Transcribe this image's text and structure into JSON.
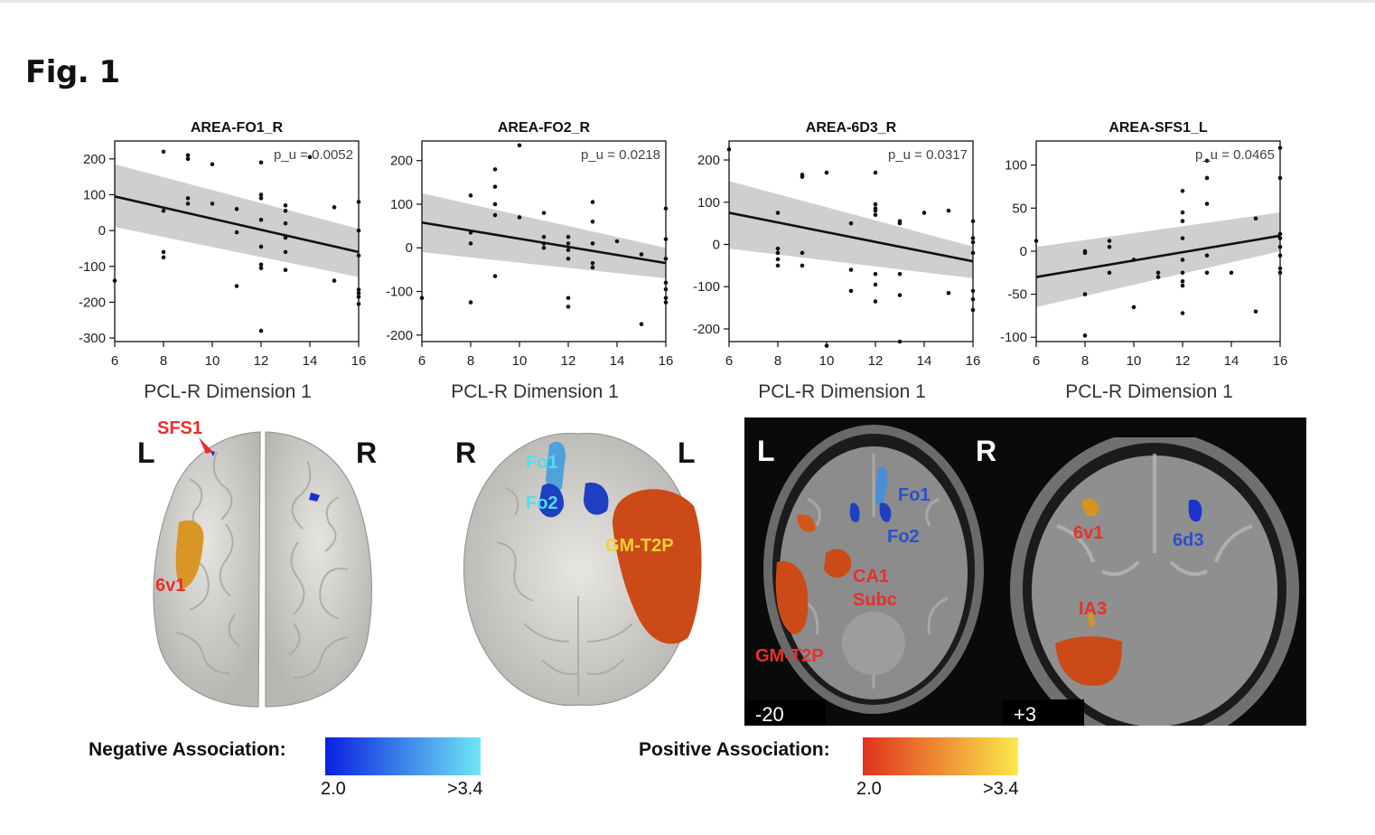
{
  "figure": {
    "title": "Fig. 1"
  },
  "chart_data": [
    {
      "type": "scatter",
      "title": "AREA-FO1_R",
      "annotation": "p_u = 0.0052",
      "xlabel": "PCL-R Dimension 1",
      "ylabel": "",
      "xlim": [
        6,
        16
      ],
      "ylim": [
        -310,
        250
      ],
      "xticks": [
        6,
        8,
        10,
        12,
        14,
        16
      ],
      "yticks": [
        200,
        100,
        0,
        -100,
        -200,
        -300
      ],
      "fit": {
        "x": [
          6,
          16
        ],
        "y": [
          95,
          -60
        ],
        "ci_low": [
          10,
          -130
        ],
        "ci_high": [
          185,
          5
        ]
      },
      "points": [
        [
          6,
          -140
        ],
        [
          8,
          220
        ],
        [
          8,
          55
        ],
        [
          8,
          -60
        ],
        [
          8,
          -75
        ],
        [
          9,
          210
        ],
        [
          9,
          200
        ],
        [
          9,
          90
        ],
        [
          9,
          75
        ],
        [
          10,
          185
        ],
        [
          10,
          75
        ],
        [
          11,
          60
        ],
        [
          11,
          -5
        ],
        [
          11,
          -155
        ],
        [
          12,
          190
        ],
        [
          12,
          100
        ],
        [
          12,
          90
        ],
        [
          12,
          30
        ],
        [
          12,
          -45
        ],
        [
          12,
          -95
        ],
        [
          12,
          -105
        ],
        [
          12,
          -280
        ],
        [
          13,
          70
        ],
        [
          13,
          55
        ],
        [
          13,
          20
        ],
        [
          13,
          -20
        ],
        [
          13,
          -60
        ],
        [
          13,
          -110
        ],
        [
          14,
          205
        ],
        [
          15,
          -140
        ],
        [
          15,
          65
        ],
        [
          16,
          80
        ],
        [
          16,
          0
        ],
        [
          16,
          -70
        ],
        [
          16,
          -165
        ],
        [
          16,
          -175
        ],
        [
          16,
          -185
        ],
        [
          16,
          -205
        ]
      ]
    },
    {
      "type": "scatter",
      "title": "AREA-FO2_R",
      "annotation": "p_u = 0.0218",
      "xlabel": "PCL-R Dimension 1",
      "ylabel": "",
      "xlim": [
        6,
        16
      ],
      "ylim": [
        -215,
        245
      ],
      "xticks": [
        6,
        8,
        10,
        12,
        14,
        16
      ],
      "yticks": [
        200,
        100,
        0,
        -100,
        -200
      ],
      "fit": {
        "x": [
          6,
          16
        ],
        "y": [
          58,
          -35
        ],
        "ci_low": [
          -10,
          -70
        ],
        "ci_high": [
          125,
          0
        ]
      },
      "points": [
        [
          6,
          -115
        ],
        [
          8,
          120
        ],
        [
          8,
          35
        ],
        [
          8,
          10
        ],
        [
          8,
          -125
        ],
        [
          9,
          180
        ],
        [
          9,
          140
        ],
        [
          9,
          100
        ],
        [
          9,
          75
        ],
        [
          9,
          -65
        ],
        [
          10,
          235
        ],
        [
          10,
          70
        ],
        [
          11,
          80
        ],
        [
          11,
          25
        ],
        [
          11,
          10
        ],
        [
          11,
          0
        ],
        [
          12,
          25
        ],
        [
          12,
          10
        ],
        [
          12,
          -5
        ],
        [
          12,
          -25
        ],
        [
          12,
          -115
        ],
        [
          12,
          -135
        ],
        [
          13,
          105
        ],
        [
          13,
          60
        ],
        [
          13,
          10
        ],
        [
          13,
          -35
        ],
        [
          13,
          -45
        ],
        [
          14,
          15
        ],
        [
          15,
          -15
        ],
        [
          15,
          -175
        ],
        [
          16,
          90
        ],
        [
          16,
          20
        ],
        [
          16,
          -25
        ],
        [
          16,
          -80
        ],
        [
          16,
          -95
        ],
        [
          16,
          -115
        ],
        [
          16,
          -125
        ]
      ]
    },
    {
      "type": "scatter",
      "title": "AREA-6D3_R",
      "annotation": "p_u = 0.0317",
      "xlabel": "PCL-R Dimension 1",
      "ylabel": "",
      "xlim": [
        6,
        16
      ],
      "ylim": [
        -230,
        245
      ],
      "xticks": [
        6,
        8,
        10,
        12,
        14,
        16
      ],
      "yticks": [
        200,
        100,
        0,
        -100,
        -200
      ],
      "fit": {
        "x": [
          6,
          16
        ],
        "y": [
          75,
          -40
        ],
        "ci_low": [
          -10,
          -80
        ],
        "ci_high": [
          150,
          -5
        ]
      },
      "points": [
        [
          6,
          225
        ],
        [
          8,
          75
        ],
        [
          8,
          -10
        ],
        [
          8,
          -20
        ],
        [
          8,
          -35
        ],
        [
          8,
          -50
        ],
        [
          9,
          165
        ],
        [
          9,
          160
        ],
        [
          9,
          -20
        ],
        [
          9,
          -50
        ],
        [
          10,
          170
        ],
        [
          10,
          -240
        ],
        [
          11,
          50
        ],
        [
          11,
          -60
        ],
        [
          11,
          -110
        ],
        [
          12,
          170
        ],
        [
          12,
          95
        ],
        [
          12,
          85
        ],
        [
          12,
          80
        ],
        [
          12,
          70
        ],
        [
          12,
          -70
        ],
        [
          12,
          -95
        ],
        [
          12,
          -135
        ],
        [
          13,
          55
        ],
        [
          13,
          50
        ],
        [
          13,
          -70
        ],
        [
          13,
          -120
        ],
        [
          13,
          -230
        ],
        [
          14,
          75
        ],
        [
          15,
          80
        ],
        [
          15,
          -115
        ],
        [
          16,
          55
        ],
        [
          16,
          15
        ],
        [
          16,
          5
        ],
        [
          16,
          -20
        ],
        [
          16,
          -110
        ],
        [
          16,
          -130
        ],
        [
          16,
          -155
        ]
      ]
    },
    {
      "type": "scatter",
      "title": "AREA-SFS1_L",
      "annotation": "p_u = 0.0465",
      "xlabel": "PCL-R Dimension 1",
      "ylabel": "",
      "xlim": [
        6,
        16
      ],
      "ylim": [
        -105,
        128
      ],
      "xticks": [
        6,
        8,
        10,
        12,
        14,
        16
      ],
      "yticks": [
        100,
        50,
        0,
        -50,
        -100
      ],
      "fit": {
        "x": [
          6,
          16
        ],
        "y": [
          -30,
          18
        ],
        "ci_low": [
          -65,
          0
        ],
        "ci_high": [
          5,
          45
        ]
      },
      "points": [
        [
          6,
          12
        ],
        [
          8,
          0
        ],
        [
          8,
          -2
        ],
        [
          8,
          -50
        ],
        [
          8,
          -98
        ],
        [
          9,
          12
        ],
        [
          9,
          5
        ],
        [
          9,
          -25
        ],
        [
          10,
          -10
        ],
        [
          10,
          -65
        ],
        [
          11,
          -25
        ],
        [
          11,
          -30
        ],
        [
          12,
          70
        ],
        [
          12,
          45
        ],
        [
          12,
          35
        ],
        [
          12,
          15
        ],
        [
          12,
          -10
        ],
        [
          12,
          -25
        ],
        [
          12,
          -35
        ],
        [
          12,
          -40
        ],
        [
          12,
          -72
        ],
        [
          13,
          105
        ],
        [
          13,
          85
        ],
        [
          13,
          55
        ],
        [
          13,
          -5
        ],
        [
          13,
          -25
        ],
        [
          14,
          -25
        ],
        [
          15,
          38
        ],
        [
          15,
          -70
        ],
        [
          16,
          120
        ],
        [
          16,
          85
        ],
        [
          16,
          20
        ],
        [
          16,
          5
        ],
        [
          16,
          -5
        ],
        [
          16,
          -20
        ],
        [
          16,
          -25
        ],
        [
          16,
          15
        ]
      ]
    }
  ],
  "brains": {
    "top_view": {
      "left_label": "L",
      "right_label": "R",
      "sfs1": "SFS1",
      "6v1": "6v1"
    },
    "bottom_view": {
      "left_label": "R",
      "right_label": "L",
      "fo1": "Fo1",
      "fo2": "Fo2",
      "gmt2p": "GM-T2P"
    },
    "axial": {
      "left_label": "L",
      "right_label": "R",
      "fo1": "Fo1",
      "fo2": "Fo2",
      "ca1": "CA1",
      "subc": "Subc",
      "gmt2p": "GM-T2P",
      "slice": "-20"
    },
    "coronal": {
      "6v1": "6v1",
      "6d3": "6d3",
      "ia3": "IA3",
      "slice": "+3"
    }
  },
  "legend": {
    "negative": {
      "label": "Negative Association:",
      "min": "2.0",
      "max": ">3.4",
      "color_start": "#0a1fe0",
      "color_end": "#6fe6f4"
    },
    "positive": {
      "label": "Positive Association:",
      "min": "2.0",
      "max": ">3.4",
      "color_start": "#e0321e",
      "color_end": "#fbe94a"
    }
  }
}
